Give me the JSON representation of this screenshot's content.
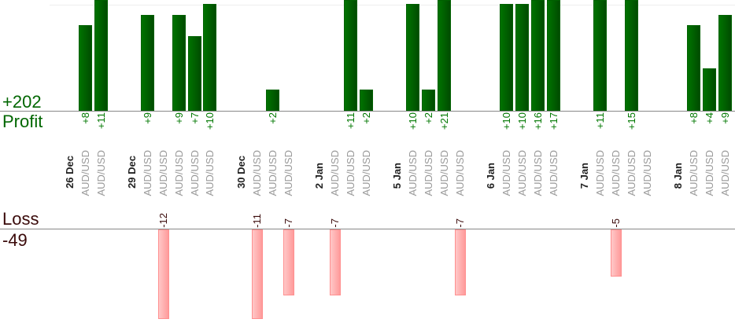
{
  "chart_data": {
    "type": "bar",
    "summary": {
      "profit_total": "+202",
      "profit_label": "Profit",
      "loss_label": "Loss",
      "loss_total": "-49"
    },
    "colors": {
      "profit": "#006600",
      "profit_bar": "#006000",
      "loss_text": "#3a0a0a",
      "loss_bar": "#ffa0a0",
      "category_text": "#999999",
      "date_text": "#222222"
    },
    "groups": [
      {
        "date": "26 Dec",
        "trades": [
          {
            "pair": "AUD/USD",
            "value": 8,
            "label": "+8"
          },
          {
            "pair": "AUD/USD",
            "value": 11,
            "label": "+11"
          }
        ]
      },
      {
        "date": "29 Dec",
        "trades": [
          {
            "pair": "AUD/USD",
            "value": 9,
            "label": "+9"
          },
          {
            "pair": "AUD/USD",
            "value": -12,
            "label": "-12"
          },
          {
            "pair": "AUD/USD",
            "value": 9,
            "label": "+9"
          },
          {
            "pair": "AUD/USD",
            "value": 7,
            "label": "+7"
          },
          {
            "pair": "AUD/USD",
            "value": 10,
            "label": "+10"
          }
        ]
      },
      {
        "date": "30 Dec",
        "trades": [
          {
            "pair": "AUD/USD",
            "value": -11,
            "label": "-11"
          },
          {
            "pair": "AUD/USD",
            "value": 2,
            "label": "+2"
          },
          {
            "pair": "AUD/USD",
            "value": -7,
            "label": "-7"
          }
        ]
      },
      {
        "date": "2 Jan",
        "trades": [
          {
            "pair": "AUD/USD",
            "value": -7,
            "label": "-7"
          },
          {
            "pair": "AUD/USD",
            "value": 11,
            "label": "+11"
          },
          {
            "pair": "AUD/USD",
            "value": 2,
            "label": "+2"
          }
        ]
      },
      {
        "date": "5 Jan",
        "trades": [
          {
            "pair": "AUD/USD",
            "value": 10,
            "label": "+10"
          },
          {
            "pair": "AUD/USD",
            "value": 2,
            "label": "+2"
          },
          {
            "pair": "AUD/USD",
            "value": 21,
            "label": "+21"
          },
          {
            "pair": "AUD/USD",
            "value": -7,
            "label": "-7"
          }
        ]
      },
      {
        "date": "6 Jan",
        "trades": [
          {
            "pair": "AUD/USD",
            "value": 10,
            "label": "+10"
          },
          {
            "pair": "AUD/USD",
            "value": 10,
            "label": "+10"
          },
          {
            "pair": "AUD/USD",
            "value": 16,
            "label": "+16"
          },
          {
            "pair": "AUD/USD",
            "value": 17,
            "label": "+17"
          }
        ]
      },
      {
        "date": "7 Jan",
        "trades": [
          {
            "pair": "AUD/USD",
            "value": 11,
            "label": "+11"
          },
          {
            "pair": "AUD/USD",
            "value": -5,
            "label": "-5"
          },
          {
            "pair": "AUD/USD",
            "value": 15,
            "label": "+15"
          },
          {
            "pair": "AUD/USD",
            "value": null,
            "label": null
          }
        ]
      },
      {
        "date": "8 Jan",
        "trades": [
          {
            "pair": "AUD/USD",
            "value": 8,
            "label": "+8"
          },
          {
            "pair": "AUD/USD",
            "value": 4,
            "label": "+4"
          },
          {
            "pair": "AUD/USD",
            "value": 9,
            "label": "+9"
          }
        ]
      }
    ]
  }
}
